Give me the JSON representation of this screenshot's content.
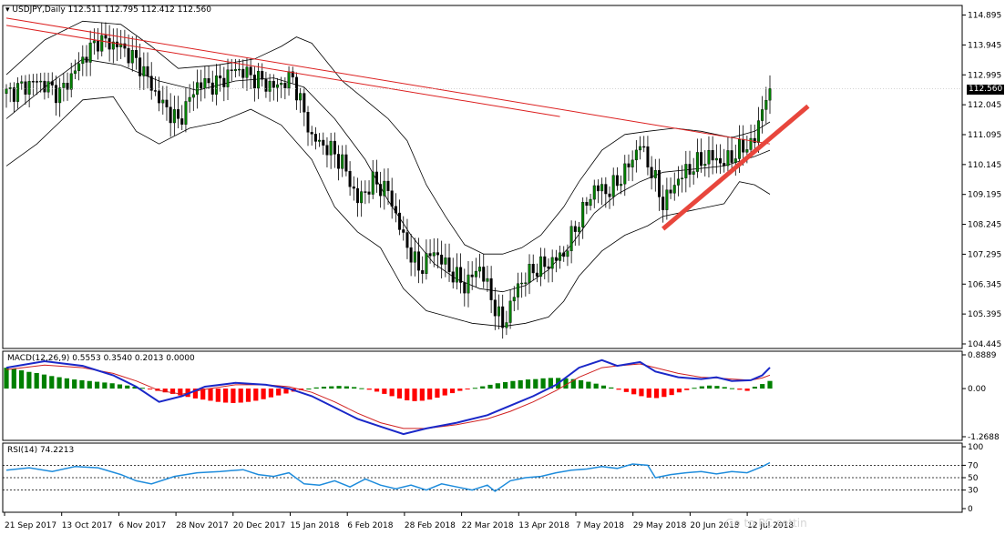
{
  "window": {
    "symbol": "USDJPY,Daily",
    "ohlc": "112.511 112.795 112.412 112.560"
  },
  "price_badge": "112.560",
  "macd": {
    "label": "MACD(12,26,9) 0.5553 0.3540 0.2013 0.0000",
    "ticks": [
      "0.8889",
      "0.00",
      "-1.2688"
    ]
  },
  "rsi": {
    "label": "RSI(14) 74.2213",
    "ticks": [
      "100",
      "70",
      "50",
      "30",
      "0"
    ]
  },
  "watermark": "Go to PC settin",
  "colors": {
    "bull": "#008000",
    "bear": "#ff0000",
    "bands": "#000000",
    "channel": "#dc2020",
    "trendline": "#e8463c",
    "macd_line": "#1a28c8",
    "signal_line": "#d02020",
    "rsi_line": "#1e8cdc",
    "badge": "#000000"
  },
  "chart_data": [
    {
      "type": "candlestick",
      "title": "USDJPY,Daily",
      "ylim": [
        104.3,
        115.2
      ],
      "yticks": [
        "114.895",
        "113.945",
        "112.995",
        "112.045",
        "111.095",
        "110.145",
        "109.195",
        "108.245",
        "107.295",
        "106.345",
        "105.395",
        "104.445"
      ],
      "xticks": [
        "21 Sep 2017",
        "13 Oct 2017",
        "6 Nov 2017",
        "28 Nov 2017",
        "20 Dec 2017",
        "15 Jan 2018",
        "6 Feb 2018",
        "28 Feb 2018",
        "22 Mar 2018",
        "13 Apr 2018",
        "7 May 2018",
        "29 May 2018",
        "20 Jun 2018",
        "12 Jul 2018"
      ],
      "close_path": [
        [
          0,
          112.4
        ],
        [
          8,
          112.8
        ],
        [
          14,
          112.4
        ],
        [
          20,
          113.5
        ],
        [
          24,
          114.1
        ],
        [
          30,
          113.9
        ],
        [
          35,
          113.3
        ],
        [
          40,
          112.2
        ],
        [
          45,
          111.5
        ],
        [
          50,
          112.7
        ],
        [
          55,
          112.7
        ],
        [
          60,
          113.2
        ],
        [
          65,
          112.9
        ],
        [
          70,
          112.6
        ],
        [
          75,
          112.9
        ],
        [
          80,
          111.0
        ],
        [
          85,
          110.6
        ],
        [
          88,
          110.2
        ],
        [
          92,
          109.0
        ],
        [
          96,
          109.6
        ],
        [
          100,
          109.3
        ],
        [
          104,
          107.8
        ],
        [
          108,
          106.8
        ],
        [
          112,
          107.4
        ],
        [
          116,
          106.8
        ],
        [
          120,
          106.3
        ],
        [
          124,
          106.9
        ],
        [
          128,
          105.6
        ],
        [
          130,
          105.0
        ],
        [
          134,
          106.3
        ],
        [
          138,
          106.8
        ],
        [
          142,
          107.0
        ],
        [
          146,
          107.3
        ],
        [
          150,
          108.4
        ],
        [
          154,
          109.4
        ],
        [
          158,
          109.3
        ],
        [
          162,
          109.9
        ],
        [
          166,
          110.8
        ],
        [
          170,
          109.6
        ],
        [
          172,
          108.9
        ],
        [
          176,
          109.7
        ],
        [
          180,
          110.1
        ],
        [
          184,
          110.4
        ],
        [
          188,
          110.2
        ],
        [
          192,
          110.6
        ],
        [
          196,
          110.9
        ],
        [
          198,
          112.0
        ],
        [
          200,
          112.56
        ]
      ],
      "bollinger_upper": [
        [
          0,
          113.0
        ],
        [
          10,
          114.1
        ],
        [
          20,
          114.7
        ],
        [
          30,
          114.6
        ],
        [
          38,
          113.9
        ],
        [
          45,
          113.2
        ],
        [
          55,
          113.3
        ],
        [
          65,
          113.5
        ],
        [
          72,
          113.9
        ],
        [
          76,
          114.2
        ],
        [
          80,
          114.0
        ],
        [
          88,
          112.8
        ],
        [
          95,
          112.1
        ],
        [
          100,
          111.6
        ],
        [
          105,
          110.9
        ],
        [
          110,
          109.5
        ],
        [
          115,
          108.5
        ],
        [
          120,
          107.6
        ],
        [
          125,
          107.3
        ],
        [
          130,
          107.3
        ],
        [
          135,
          107.5
        ],
        [
          140,
          107.9
        ],
        [
          146,
          108.8
        ],
        [
          150,
          109.6
        ],
        [
          156,
          110.6
        ],
        [
          162,
          111.1
        ],
        [
          168,
          111.2
        ],
        [
          175,
          111.3
        ],
        [
          182,
          111.2
        ],
        [
          190,
          111.0
        ],
        [
          196,
          111.2
        ],
        [
          200,
          111.5
        ]
      ],
      "bollinger_middle": [
        [
          0,
          111.6
        ],
        [
          10,
          112.6
        ],
        [
          20,
          113.5
        ],
        [
          30,
          113.3
        ],
        [
          40,
          112.8
        ],
        [
          50,
          112.5
        ],
        [
          60,
          112.8
        ],
        [
          70,
          112.9
        ],
        [
          78,
          112.6
        ],
        [
          86,
          111.6
        ],
        [
          94,
          110.3
        ],
        [
          100,
          109.0
        ],
        [
          106,
          107.9
        ],
        [
          112,
          107.0
        ],
        [
          118,
          106.5
        ],
        [
          124,
          106.2
        ],
        [
          130,
          106.1
        ],
        [
          136,
          106.3
        ],
        [
          142,
          106.8
        ],
        [
          148,
          107.6
        ],
        [
          154,
          108.6
        ],
        [
          160,
          109.2
        ],
        [
          166,
          109.6
        ],
        [
          172,
          109.9
        ],
        [
          180,
          110.0
        ],
        [
          188,
          110.1
        ],
        [
          196,
          110.4
        ],
        [
          200,
          110.6
        ]
      ],
      "bollinger_lower": [
        [
          0,
          110.1
        ],
        [
          8,
          110.8
        ],
        [
          14,
          111.5
        ],
        [
          20,
          112.2
        ],
        [
          28,
          112.3
        ],
        [
          34,
          111.2
        ],
        [
          40,
          110.8
        ],
        [
          48,
          111.3
        ],
        [
          56,
          111.5
        ],
        [
          64,
          111.9
        ],
        [
          72,
          111.4
        ],
        [
          80,
          110.3
        ],
        [
          86,
          108.8
        ],
        [
          92,
          108.0
        ],
        [
          98,
          107.5
        ],
        [
          104,
          106.2
        ],
        [
          110,
          105.5
        ],
        [
          116,
          105.3
        ],
        [
          122,
          105.1
        ],
        [
          130,
          105.0
        ],
        [
          136,
          105.1
        ],
        [
          142,
          105.3
        ],
        [
          146,
          105.8
        ],
        [
          150,
          106.6
        ],
        [
          156,
          107.4
        ],
        [
          162,
          107.9
        ],
        [
          168,
          108.2
        ],
        [
          172,
          108.5
        ],
        [
          180,
          108.7
        ],
        [
          188,
          108.9
        ],
        [
          192,
          109.6
        ],
        [
          196,
          109.5
        ],
        [
          200,
          109.2
        ]
      ],
      "channel_line": [
        [
          0,
          114.8
        ],
        [
          200,
          110.8
        ]
      ],
      "trendline": [
        [
          172,
          108.1
        ],
        [
          210,
          112.0
        ]
      ]
    },
    {
      "type": "histogram+line",
      "title": "MACD(12,26,9)",
      "ylim": [
        -1.2688,
        0.8889
      ],
      "histogram": [
        0.55,
        0.52,
        0.48,
        0.44,
        0.41,
        0.37,
        0.33,
        0.3,
        0.27,
        0.24,
        0.22,
        0.2,
        0.18,
        0.16,
        0.14,
        0.11,
        0.08,
        0.05,
        0.02,
        -0.02,
        -0.06,
        -0.1,
        -0.14,
        -0.18,
        -0.22,
        -0.26,
        -0.29,
        -0.32,
        -0.35,
        -0.37,
        -0.38,
        -0.37,
        -0.35,
        -0.32,
        -0.28,
        -0.23,
        -0.18,
        -0.13,
        -0.08,
        -0.04,
        0.0,
        0.03,
        0.05,
        0.06,
        0.07,
        0.06,
        0.04,
        0.01,
        -0.03,
        -0.08,
        -0.14,
        -0.2,
        -0.26,
        -0.31,
        -0.33,
        -0.32,
        -0.29,
        -0.24,
        -0.18,
        -0.12,
        -0.06,
        -0.02,
        0.02,
        0.06,
        0.1,
        0.14,
        0.17,
        0.2,
        0.22,
        0.24,
        0.25,
        0.27,
        0.28,
        0.28,
        0.27,
        0.25,
        0.22,
        0.18,
        0.13,
        0.08,
        0.03,
        -0.03,
        -0.09,
        -0.15,
        -0.2,
        -0.24,
        -0.25,
        -0.22,
        -0.17,
        -0.1,
        -0.04,
        0.02,
        0.06,
        0.08,
        0.07,
        0.04,
        0.01,
        -0.03,
        -0.06,
        0.05,
        0.12,
        0.2013
      ],
      "macd_line": [
        [
          0,
          0.55
        ],
        [
          10,
          0.72
        ],
        [
          20,
          0.6
        ],
        [
          28,
          0.35
        ],
        [
          34,
          0.05
        ],
        [
          40,
          -0.35
        ],
        [
          46,
          -0.2
        ],
        [
          52,
          0.05
        ],
        [
          60,
          0.15
        ],
        [
          68,
          0.1
        ],
        [
          74,
          0.0
        ],
        [
          80,
          -0.2
        ],
        [
          86,
          -0.5
        ],
        [
          92,
          -0.8
        ],
        [
          98,
          -1.0
        ],
        [
          104,
          -1.2
        ],
        [
          110,
          -1.05
        ],
        [
          118,
          -0.9
        ],
        [
          126,
          -0.7
        ],
        [
          132,
          -0.45
        ],
        [
          138,
          -0.2
        ],
        [
          144,
          0.1
        ],
        [
          150,
          0.55
        ],
        [
          156,
          0.75
        ],
        [
          160,
          0.6
        ],
        [
          166,
          0.7
        ],
        [
          170,
          0.45
        ],
        [
          176,
          0.3
        ],
        [
          182,
          0.25
        ],
        [
          186,
          0.3
        ],
        [
          190,
          0.2
        ],
        [
          195,
          0.22
        ],
        [
          198,
          0.35
        ],
        [
          200,
          0.5553
        ]
      ],
      "signal_line": [
        [
          0,
          0.5
        ],
        [
          10,
          0.62
        ],
        [
          20,
          0.55
        ],
        [
          28,
          0.4
        ],
        [
          34,
          0.2
        ],
        [
          40,
          -0.05
        ],
        [
          46,
          -0.15
        ],
        [
          52,
          -0.02
        ],
        [
          60,
          0.1
        ],
        [
          68,
          0.1
        ],
        [
          74,
          0.05
        ],
        [
          80,
          -0.1
        ],
        [
          86,
          -0.35
        ],
        [
          92,
          -0.65
        ],
        [
          98,
          -0.9
        ],
        [
          104,
          -1.05
        ],
        [
          110,
          -1.05
        ],
        [
          118,
          -0.95
        ],
        [
          126,
          -0.8
        ],
        [
          132,
          -0.6
        ],
        [
          138,
          -0.35
        ],
        [
          144,
          -0.05
        ],
        [
          150,
          0.3
        ],
        [
          156,
          0.55
        ],
        [
          160,
          0.6
        ],
        [
          166,
          0.65
        ],
        [
          170,
          0.55
        ],
        [
          176,
          0.4
        ],
        [
          182,
          0.3
        ],
        [
          186,
          0.28
        ],
        [
          190,
          0.25
        ],
        [
          195,
          0.22
        ],
        [
          198,
          0.28
        ],
        [
          200,
          0.354
        ]
      ]
    },
    {
      "type": "line",
      "title": "RSI(14)",
      "ylim": [
        0,
        100
      ],
      "levels": [
        70,
        50,
        30
      ],
      "values": [
        [
          0,
          62
        ],
        [
          6,
          66
        ],
        [
          12,
          60
        ],
        [
          18,
          68
        ],
        [
          24,
          66
        ],
        [
          30,
          55
        ],
        [
          34,
          45
        ],
        [
          38,
          40
        ],
        [
          44,
          52
        ],
        [
          50,
          58
        ],
        [
          56,
          60
        ],
        [
          62,
          63
        ],
        [
          66,
          55
        ],
        [
          70,
          52
        ],
        [
          74,
          58
        ],
        [
          78,
          40
        ],
        [
          82,
          38
        ],
        [
          86,
          45
        ],
        [
          90,
          35
        ],
        [
          94,
          48
        ],
        [
          98,
          38
        ],
        [
          102,
          32
        ],
        [
          106,
          38
        ],
        [
          110,
          30
        ],
        [
          114,
          40
        ],
        [
          118,
          35
        ],
        [
          122,
          30
        ],
        [
          126,
          38
        ],
        [
          128,
          28
        ],
        [
          132,
          45
        ],
        [
          136,
          50
        ],
        [
          140,
          52
        ],
        [
          144,
          58
        ],
        [
          148,
          62
        ],
        [
          152,
          64
        ],
        [
          156,
          68
        ],
        [
          160,
          65
        ],
        [
          164,
          72
        ],
        [
          168,
          70
        ],
        [
          170,
          50
        ],
        [
          174,
          55
        ],
        [
          178,
          58
        ],
        [
          182,
          60
        ],
        [
          186,
          56
        ],
        [
          190,
          60
        ],
        [
          194,
          58
        ],
        [
          198,
          68
        ],
        [
          200,
          74.2213
        ]
      ]
    }
  ]
}
